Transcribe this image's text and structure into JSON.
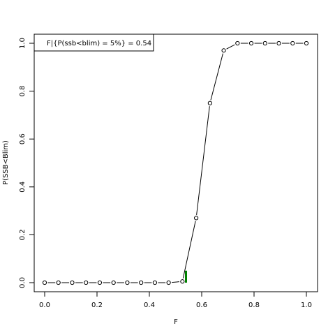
{
  "chart_data": {
    "type": "line",
    "title": "",
    "xlabel": "F",
    "ylabel": "P(SSB<Blim)",
    "xlim": [
      -0.04,
      1.04
    ],
    "ylim": [
      -0.04,
      1.04
    ],
    "grid": false,
    "legend": "top-left",
    "x_ticks": [
      0.0,
      0.2,
      0.4,
      0.6,
      0.8,
      1.0
    ],
    "x_tick_labels": [
      "0.0",
      "0.2",
      "0.4",
      "0.6",
      "0.8",
      "1.0"
    ],
    "y_ticks": [
      0.0,
      0.2,
      0.4,
      0.6,
      0.8,
      1.0
    ],
    "y_tick_labels": [
      "0.0",
      "0.2",
      "0.4",
      "0.6",
      "0.8",
      "1.0"
    ],
    "series": [
      {
        "x": [
          0.0,
          0.0526,
          0.1053,
          0.1579,
          0.2105,
          0.2632,
          0.3158,
          0.3684,
          0.4211,
          0.4737,
          0.5263,
          0.5789,
          0.6316,
          0.6842,
          0.7368,
          0.7895,
          0.8421,
          0.8947,
          0.9474,
          1.0
        ],
        "y": [
          0.0,
          0.0,
          0.0,
          0.0,
          0.0,
          0.0,
          0.0,
          0.0,
          0.0,
          0.0,
          0.005,
          0.27,
          0.75,
          0.97,
          1.0,
          1.0,
          1.0,
          1.0,
          1.0,
          1.0
        ],
        "color": "#000000"
      }
    ],
    "marker": {
      "x": 0.54,
      "y_from": 0.0,
      "y_to": 0.05,
      "color": "#008000"
    },
    "legend_text": "F|{P(ssb<blim) = 5%} =  0.54"
  }
}
